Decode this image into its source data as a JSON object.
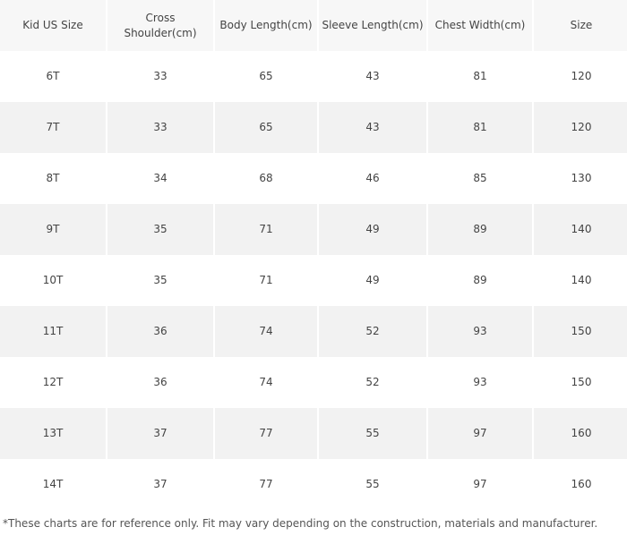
{
  "table": {
    "header": [
      "Kid US Size",
      "Cross Shoulder(cm)",
      "Body Length(cm)",
      "Sleeve Length(cm)",
      "Chest Width(cm)",
      "Size"
    ],
    "rows": [
      [
        "6T",
        33,
        65,
        43,
        81,
        120
      ],
      [
        "7T",
        33,
        65,
        43,
        81,
        120
      ],
      [
        "8T",
        34,
        68,
        46,
        85,
        130
      ],
      [
        "9T",
        35,
        71,
        49,
        89,
        140
      ],
      [
        "10T",
        35,
        71,
        49,
        89,
        140
      ],
      [
        "11T",
        36,
        74,
        52,
        93,
        150
      ],
      [
        "12T",
        36,
        74,
        52,
        93,
        150
      ],
      [
        "13T",
        37,
        77,
        55,
        97,
        160
      ],
      [
        "14T",
        37,
        77,
        55,
        97,
        160
      ]
    ]
  },
  "footnote": "*These charts are for reference only. Fit may vary depending on the construction, materials and manufacturer."
}
